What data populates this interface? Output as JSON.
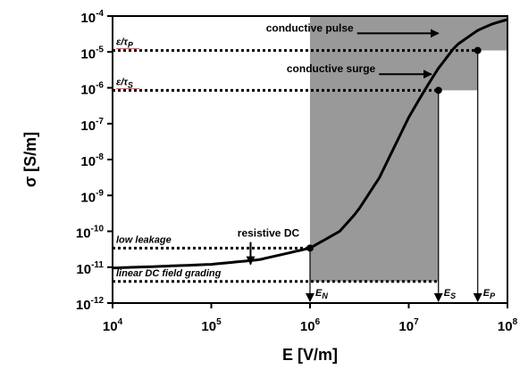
{
  "chart_data": {
    "type": "line",
    "x_scale": "log",
    "y_scale": "log",
    "xlabel": "E  [V/m]",
    "ylabel": "σ [S/m]",
    "xlim": [
      10000,
      100000000
    ],
    "ylim": [
      1e-12,
      0.0001
    ],
    "grid": false,
    "x_ticks": [
      {
        "value": 10000,
        "base": "10",
        "exp": "4"
      },
      {
        "value": 100000,
        "base": "10",
        "exp": "5"
      },
      {
        "value": 1000000,
        "base": "10",
        "exp": "6"
      },
      {
        "value": 10000000,
        "base": "10",
        "exp": "7"
      },
      {
        "value": 100000000,
        "base": "10",
        "exp": "8"
      }
    ],
    "y_ticks": [
      {
        "value": 0.0001,
        "base": "10",
        "exp": "-4"
      },
      {
        "value": 1e-05,
        "base": "10",
        "exp": "-5"
      },
      {
        "value": 1e-06,
        "base": "10",
        "exp": "-6"
      },
      {
        "value": 1e-07,
        "base": "10",
        "exp": "-7"
      },
      {
        "value": 1e-08,
        "base": "10",
        "exp": "-8"
      },
      {
        "value": 1e-09,
        "base": "10",
        "exp": "-9"
      },
      {
        "value": 1e-10,
        "base": "10",
        "exp": "-10"
      },
      {
        "value": 1e-11,
        "base": "10",
        "exp": "-11"
      },
      {
        "value": 1e-12,
        "base": "10",
        "exp": "-12"
      }
    ],
    "series": [
      {
        "x": [
          10000,
          30000,
          100000,
          300000,
          1000000,
          2000000,
          3000000,
          5000000,
          7000000,
          10000000,
          15000000,
          20000000,
          30000000,
          50000000,
          70000000,
          100000000
        ],
        "y": [
          9.5e-12,
          1.05e-11,
          1.2e-11,
          1.6e-11,
          3.4e-11,
          1e-10,
          3.5e-10,
          3e-09,
          2e-08,
          1.5e-07,
          1e-06,
          3.5e-06,
          1.5e-05,
          4e-05,
          6e-05,
          8e-05
        ]
      }
    ],
    "regions": [
      {
        "x": [
          1000000,
          100000000
        ],
        "y_top": [
          0.0001,
          0.0001
        ],
        "y_bottom": [
          4e-12,
          4e-12
        ],
        "color": "#999999"
      }
    ],
    "points": [
      {
        "x": 1000000,
        "y": 3.4e-11
      },
      {
        "x": 20000000,
        "y": 8.5e-07
      },
      {
        "x": 50000000,
        "y": 1.1e-05
      }
    ],
    "reference_lines": [
      {
        "y": 1.1e-05,
        "x_from": 10000,
        "x_to": 50000000,
        "label": "ε/τ",
        "label_sub": "P"
      },
      {
        "y": 8.5e-07,
        "x_from": 10000,
        "x_to": 20000000,
        "label": "ε/τ",
        "label_sub": "S"
      },
      {
        "y": 3.4e-11,
        "x_from": 10000,
        "x_to": 1000000,
        "label": "low leakage"
      },
      {
        "y": 4e-12,
        "x_from": 10000,
        "x_to": 20000000,
        "label": "linear DC field grading"
      }
    ],
    "vertical_markers": [
      {
        "x": 1000000,
        "label": "E",
        "label_sub": "N"
      },
      {
        "x": 20000000,
        "label": "E",
        "label_sub": "S"
      },
      {
        "x": 50000000,
        "label": "E",
        "label_sub": "P"
      }
    ],
    "annotations": [
      {
        "text": "conductive pulse",
        "arrow_from": [
          3000000,
          3.3e-05
        ],
        "arrow_to": [
          20000000,
          3.3e-05
        ]
      },
      {
        "text": "conductive surge",
        "arrow_from": [
          5000000,
          2.4e-06
        ],
        "arrow_to": [
          17000000,
          2.4e-06
        ]
      },
      {
        "text": "resistive DC",
        "arrow_from": [
          250000,
          5e-11
        ],
        "arrow_to": [
          250000,
          1.2e-11
        ]
      }
    ]
  }
}
